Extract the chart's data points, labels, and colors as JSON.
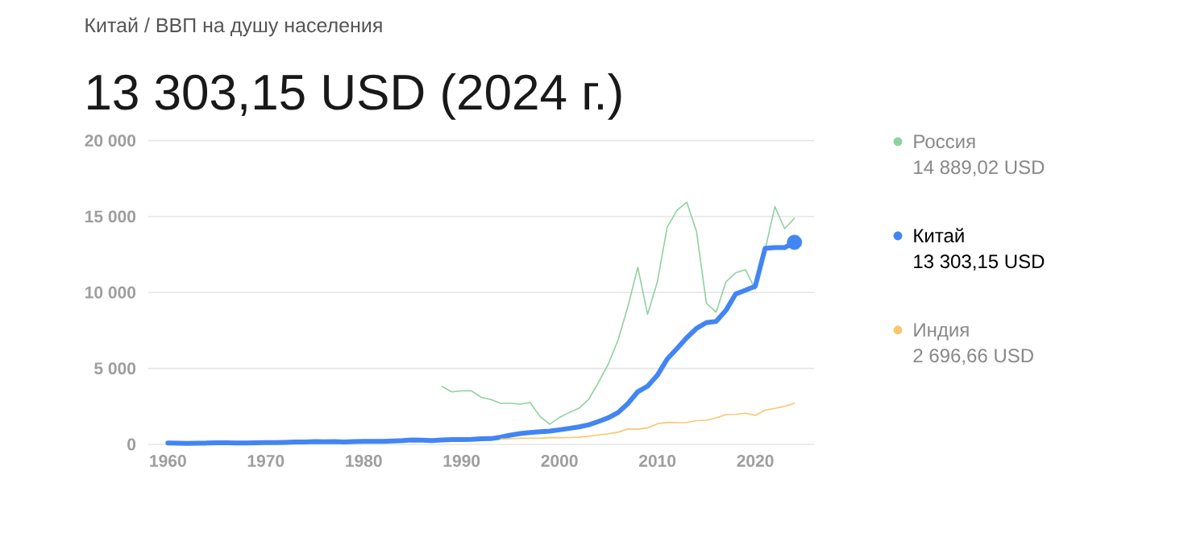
{
  "chart_data": {
    "type": "line",
    "subtitle": "Китай / ВВП на душу населения",
    "title": "13 303,15 USD (2024 г.)",
    "series": [
      {
        "name": "Россия",
        "color": "#8fd19e",
        "x": [
          1988,
          1989,
          1990,
          1991,
          1992,
          1993,
          1994,
          1995,
          1996,
          1997,
          1998,
          1999,
          2000,
          2001,
          2002,
          2003,
          2004,
          2005,
          2006,
          2007,
          2008,
          2009,
          2010,
          2011,
          2012,
          2013,
          2014,
          2015,
          2016,
          2017,
          2018,
          2019,
          2020,
          2021,
          2022,
          2023,
          2024
        ],
        "values": [
          3816,
          3460,
          3520,
          3530,
          3100,
          2950,
          2700,
          2700,
          2650,
          2750,
          1850,
          1330,
          1770,
          2100,
          2380,
          2980,
          4100,
          5300,
          6900,
          9100,
          11650,
          8560,
          10700,
          14300,
          15400,
          15950,
          14000,
          9300,
          8700,
          10700,
          11300,
          11500,
          10200,
          12800,
          15650,
          14200,
          14889.02
        ]
      },
      {
        "name": "Китай",
        "color": "#4285f4",
        "x": [
          1960,
          1961,
          1962,
          1963,
          1964,
          1965,
          1966,
          1967,
          1968,
          1969,
          1970,
          1971,
          1972,
          1973,
          1974,
          1975,
          1976,
          1977,
          1978,
          1979,
          1980,
          1981,
          1982,
          1983,
          1984,
          1985,
          1986,
          1987,
          1988,
          1989,
          1990,
          1991,
          1992,
          1993,
          1994,
          1995,
          1996,
          1997,
          1998,
          1999,
          2000,
          2001,
          2002,
          2003,
          2004,
          2005,
          2006,
          2007,
          2008,
          2009,
          2010,
          2011,
          2012,
          2013,
          2014,
          2015,
          2016,
          2017,
          2018,
          2019,
          2020,
          2021,
          2022,
          2023,
          2024
        ],
        "values": [
          90,
          76,
          71,
          74,
          85,
          98,
          104,
          97,
          91,
          100,
          113,
          119,
          132,
          157,
          160,
          178,
          165,
          185,
          156,
          183,
          195,
          197,
          203,
          225,
          251,
          294,
          282,
          252,
          284,
          311,
          318,
          333,
          366,
          377,
          473,
          610,
          709,
          782,
          829,
          873,
          959,
          1053,
          1149,
          1289,
          1509,
          1753,
          2099,
          2694,
          3468,
          3832,
          4550,
          5614,
          6301,
          7020,
          7636,
          8016,
          8094,
          8817,
          9905,
          10144,
          10409,
          12900,
          12950,
          12950,
          13303.15
        ]
      },
      {
        "name": "Индия",
        "color": "#f9c66f",
        "x": [
          1994,
          1995,
          1996,
          1997,
          1998,
          1999,
          2000,
          2001,
          2002,
          2003,
          2004,
          2005,
          2006,
          2007,
          2008,
          2009,
          2010,
          2011,
          2012,
          2013,
          2014,
          2015,
          2016,
          2017,
          2018,
          2019,
          2020,
          2021,
          2022,
          2023,
          2024
        ],
        "values": [
          350,
          370,
          400,
          410,
          410,
          440,
          440,
          450,
          470,
          540,
          620,
          700,
          800,
          1020,
          1000,
          1090,
          1350,
          1450,
          1430,
          1440,
          1560,
          1590,
          1730,
          1960,
          1970,
          2050,
          1910,
          2250,
          2370,
          2500,
          2696.66
        ]
      },
      {
        "type": "scatter",
        "color": "#4285f4",
        "x": [
          2024
        ],
        "values": [
          13303.15
        ]
      }
    ],
    "annotations": [
      "14 889,02 USD",
      "13 303,15 USD",
      "2 696,66 USD"
    ],
    "xlim": [
      1958,
      2026
    ],
    "ylim": [
      0,
      20000
    ],
    "xticks": [
      1960,
      1970,
      1980,
      1990,
      2000,
      2010,
      2020
    ],
    "yticks": [
      {
        "value": 0,
        "label": "0"
      },
      {
        "value": 5000,
        "label": "5 000"
      },
      {
        "value": 10000,
        "label": "10 000"
      },
      {
        "value": 15000,
        "label": "15 000"
      },
      {
        "value": 20000,
        "label": "20 000"
      }
    ],
    "grid": "y",
    "legend": "right"
  }
}
